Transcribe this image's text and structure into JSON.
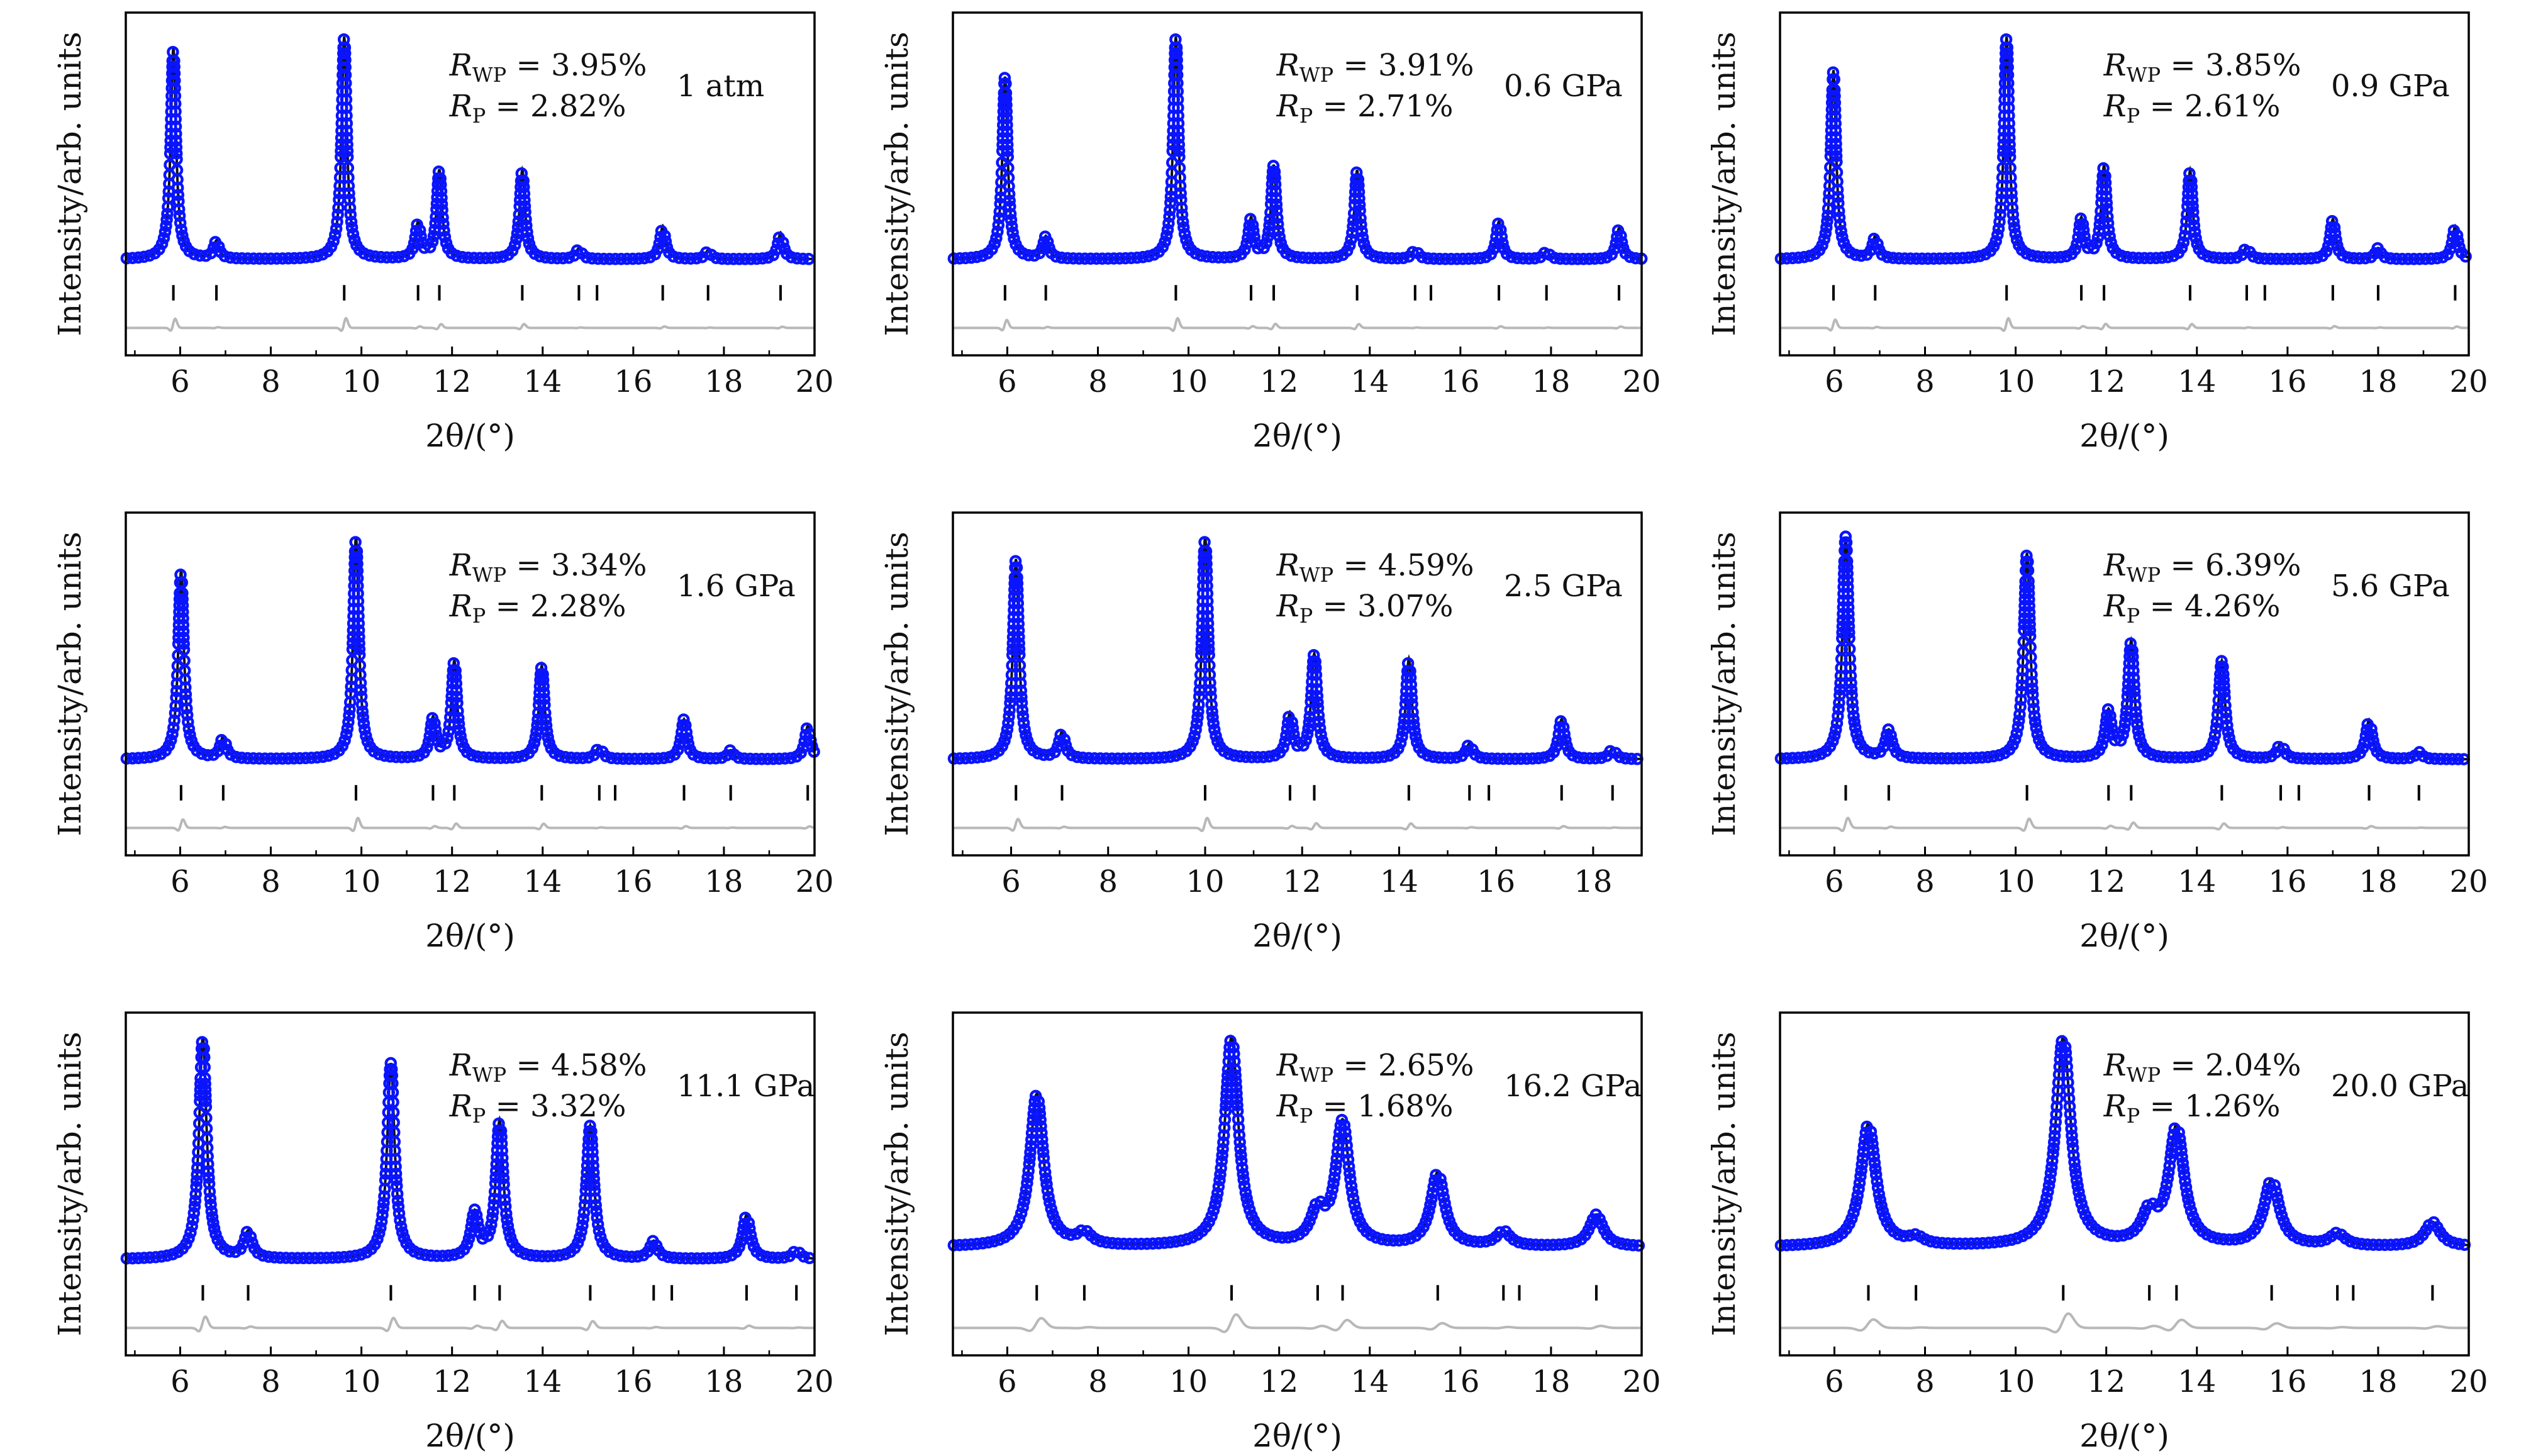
{
  "figure": {
    "ylabel": "Intensity/arb. units",
    "xlabel": "2θ/(°)",
    "colors": {
      "observed": "#0a14ff",
      "calc": "#111111",
      "difference": "#b8b8b8",
      "ticks": "#000000"
    }
  },
  "chart_data": [
    {
      "type": "line",
      "condition": "1 atm",
      "rwp": "3.95%",
      "rp": "2.82%",
      "xlim": [
        4.8,
        20
      ],
      "xticks": [
        6,
        8,
        10,
        12,
        14,
        16,
        18,
        20
      ],
      "peaks": [
        [
          5.85,
          0.95
        ],
        [
          6.8,
          0.08
        ],
        [
          9.62,
          1.0
        ],
        [
          11.25,
          0.16
        ],
        [
          11.72,
          0.4
        ],
        [
          13.55,
          0.4
        ],
        [
          14.8,
          0.05
        ],
        [
          16.65,
          0.15
        ],
        [
          17.65,
          0.04
        ],
        [
          19.25,
          0.12
        ]
      ],
      "reflections": [
        5.85,
        6.8,
        9.62,
        11.25,
        11.72,
        13.55,
        14.8,
        15.2,
        16.65,
        17.65,
        19.25
      ],
      "width": 0.07,
      "baseline": 0.0
    },
    {
      "type": "line",
      "condition": "0.6 GPa",
      "rwp": "3.91%",
      "rp": "2.71%",
      "xlim": [
        4.8,
        20
      ],
      "xticks": [
        6,
        8,
        10,
        12,
        14,
        16,
        18,
        20
      ],
      "peaks": [
        [
          5.95,
          0.82
        ],
        [
          6.85,
          0.1
        ],
        [
          9.72,
          1.0
        ],
        [
          11.38,
          0.18
        ],
        [
          11.88,
          0.42
        ],
        [
          13.72,
          0.4
        ],
        [
          15.0,
          0.05
        ],
        [
          16.85,
          0.17
        ],
        [
          17.9,
          0.04
        ],
        [
          19.5,
          0.14
        ]
      ],
      "reflections": [
        5.95,
        6.85,
        9.72,
        11.38,
        11.88,
        13.72,
        15.0,
        15.35,
        16.85,
        17.9,
        19.5
      ],
      "width": 0.07,
      "baseline": 0.0
    },
    {
      "type": "line",
      "condition": "0.9 GPa",
      "rwp": "3.85%",
      "rp": "2.61%",
      "xlim": [
        4.8,
        20
      ],
      "xticks": [
        6,
        8,
        10,
        12,
        14,
        16,
        18,
        20
      ],
      "peaks": [
        [
          5.98,
          0.85
        ],
        [
          6.9,
          0.1
        ],
        [
          9.8,
          1.0
        ],
        [
          11.45,
          0.18
        ],
        [
          11.95,
          0.42
        ],
        [
          13.85,
          0.4
        ],
        [
          15.1,
          0.06
        ],
        [
          17.0,
          0.18
        ],
        [
          18.0,
          0.05
        ],
        [
          19.7,
          0.15
        ]
      ],
      "reflections": [
        5.98,
        6.9,
        9.8,
        11.45,
        11.95,
        13.85,
        15.1,
        15.5,
        17.0,
        18.0,
        19.7
      ],
      "width": 0.07,
      "baseline": 0.0
    },
    {
      "type": "line",
      "condition": "1.6 GPa",
      "rwp": "3.34%",
      "rp": "2.28%",
      "xlim": [
        4.8,
        20
      ],
      "xticks": [
        6,
        8,
        10,
        12,
        14,
        16,
        18,
        20
      ],
      "peaks": [
        [
          6.02,
          0.85
        ],
        [
          6.95,
          0.1
        ],
        [
          9.88,
          1.0
        ],
        [
          11.58,
          0.18
        ],
        [
          12.05,
          0.44
        ],
        [
          13.98,
          0.42
        ],
        [
          15.25,
          0.06
        ],
        [
          17.12,
          0.18
        ],
        [
          18.15,
          0.04
        ],
        [
          19.85,
          0.15
        ]
      ],
      "reflections": [
        6.02,
        6.95,
        9.88,
        11.58,
        12.05,
        13.98,
        15.25,
        15.6,
        17.12,
        18.15,
        19.85
      ],
      "width": 0.075,
      "baseline": 0.0
    },
    {
      "type": "line",
      "condition": "2.5 GPa",
      "rwp": "4.59%",
      "rp": "3.07%",
      "xlim": [
        4.8,
        19
      ],
      "xticks": [
        6,
        8,
        10,
        12,
        14,
        16,
        18
      ],
      "peaks": [
        [
          6.1,
          0.9
        ],
        [
          7.05,
          0.12
        ],
        [
          10.0,
          1.0
        ],
        [
          11.75,
          0.2
        ],
        [
          12.25,
          0.47
        ],
        [
          14.2,
          0.45
        ],
        [
          15.45,
          0.07
        ],
        [
          17.35,
          0.18
        ],
        [
          18.4,
          0.05
        ]
      ],
      "reflections": [
        6.1,
        7.05,
        10.0,
        11.75,
        12.25,
        14.2,
        15.45,
        15.85,
        17.35,
        18.4
      ],
      "width": 0.075,
      "baseline": 0.0
    },
    {
      "type": "line",
      "condition": "5.6 GPa",
      "rwp": "6.39%",
      "rp": "4.26%",
      "xlim": [
        4.8,
        20
      ],
      "xticks": [
        6,
        8,
        10,
        12,
        14,
        16,
        18,
        20
      ],
      "peaks": [
        [
          6.25,
          0.95
        ],
        [
          7.2,
          0.12
        ],
        [
          10.25,
          0.88
        ],
        [
          12.05,
          0.2
        ],
        [
          12.55,
          0.5
        ],
        [
          14.55,
          0.42
        ],
        [
          15.85,
          0.07
        ],
        [
          17.8,
          0.17
        ],
        [
          18.9,
          0.03
        ]
      ],
      "reflections": [
        6.25,
        7.2,
        10.25,
        12.05,
        12.55,
        14.55,
        15.85,
        16.25,
        17.8,
        18.9
      ],
      "width": 0.085,
      "baseline": 0.0
    },
    {
      "type": "line",
      "condition": "11.1 GPa",
      "rwp": "4.58%",
      "rp": "3.32%",
      "xlim": [
        4.8,
        20
      ],
      "xticks": [
        6,
        8,
        10,
        12,
        14,
        16,
        18,
        20
      ],
      "peaks": [
        [
          6.5,
          1.0
        ],
        [
          7.5,
          0.12
        ],
        [
          10.65,
          0.88
        ],
        [
          12.5,
          0.2
        ],
        [
          13.05,
          0.62
        ],
        [
          15.05,
          0.6
        ],
        [
          16.45,
          0.08
        ],
        [
          18.5,
          0.2
        ],
        [
          19.6,
          0.04
        ]
      ],
      "reflections": [
        6.5,
        7.5,
        10.65,
        12.5,
        13.05,
        15.05,
        16.45,
        16.85,
        18.5,
        19.6
      ],
      "width": 0.1,
      "baseline": 0.0
    },
    {
      "type": "line",
      "condition": "16.2 GPa",
      "rwp": "2.65%",
      "rp": "1.68%",
      "xlim": [
        4.8,
        20
      ],
      "xticks": [
        6,
        8,
        10,
        12,
        14,
        16,
        18,
        20
      ],
      "peaks": [
        [
          6.65,
          0.62
        ],
        [
          7.7,
          0.05
        ],
        [
          10.95,
          0.85
        ],
        [
          12.85,
          0.13
        ],
        [
          13.4,
          0.5
        ],
        [
          15.5,
          0.3
        ],
        [
          16.95,
          0.06
        ],
        [
          19.0,
          0.13
        ]
      ],
      "reflections": [
        6.65,
        7.7,
        10.95,
        12.85,
        13.4,
        15.5,
        16.95,
        17.3,
        19.0
      ],
      "width": 0.18,
      "baseline": 0.05
    },
    {
      "type": "line",
      "condition": "20.0 GPa",
      "rwp": "2.04%",
      "rp": "1.26%",
      "xlim": [
        4.8,
        20
      ],
      "xticks": [
        6,
        8,
        10,
        12,
        14,
        16,
        18,
        20
      ],
      "peaks": [
        [
          6.75,
          0.5
        ],
        [
          7.8,
          0.03
        ],
        [
          11.05,
          0.85
        ],
        [
          12.95,
          0.12
        ],
        [
          13.55,
          0.48
        ],
        [
          15.65,
          0.27
        ],
        [
          17.1,
          0.05
        ],
        [
          19.2,
          0.1
        ]
      ],
      "reflections": [
        6.75,
        7.8,
        11.05,
        12.95,
        13.55,
        15.65,
        17.1,
        17.45,
        19.2
      ],
      "width": 0.2,
      "baseline": 0.05
    }
  ]
}
